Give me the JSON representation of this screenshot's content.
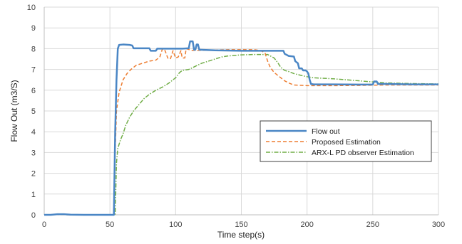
{
  "chart_data": {
    "type": "line",
    "title": "",
    "xlabel": "Time step(s)",
    "ylabel": "Flow Out (m3/S)",
    "xlim": [
      0,
      300
    ],
    "ylim": [
      0,
      10
    ],
    "xticks": [
      0,
      50,
      100,
      150,
      200,
      250,
      300
    ],
    "yticks": [
      0,
      1,
      2,
      3,
      4,
      5,
      6,
      7,
      8,
      9,
      10
    ],
    "grid": true,
    "legend_position": "right",
    "series": [
      {
        "name": "Flow out",
        "color": "#4a86c5",
        "style": "solid",
        "points": [
          [
            0,
            0
          ],
          [
            5,
            0
          ],
          [
            10,
            0.03
          ],
          [
            15,
            0.03
          ],
          [
            20,
            0.01
          ],
          [
            30,
            0
          ],
          [
            40,
            0
          ],
          [
            50,
            0
          ],
          [
            53,
            0
          ],
          [
            54,
            4
          ],
          [
            55,
            6.5
          ],
          [
            56,
            8.0
          ],
          [
            57,
            8.18
          ],
          [
            60,
            8.2
          ],
          [
            65,
            8.18
          ],
          [
            67,
            8.15
          ],
          [
            68,
            8.02
          ],
          [
            75,
            8.02
          ],
          [
            80,
            8.02
          ],
          [
            81,
            7.9
          ],
          [
            85,
            7.9
          ],
          [
            86,
            8.0
          ],
          [
            95,
            8.0
          ],
          [
            100,
            8.0
          ],
          [
            105,
            8.0
          ],
          [
            110,
            8.02
          ],
          [
            111,
            8.35
          ],
          [
            113,
            8.35
          ],
          [
            114,
            7.95
          ],
          [
            115,
            7.95
          ],
          [
            116,
            8.2
          ],
          [
            117,
            8.2
          ],
          [
            118,
            7.95
          ],
          [
            130,
            7.92
          ],
          [
            150,
            7.9
          ],
          [
            170,
            7.9
          ],
          [
            180,
            7.9
          ],
          [
            182,
            7.9
          ],
          [
            183,
            7.75
          ],
          [
            186,
            7.65
          ],
          [
            190,
            7.62
          ],
          [
            191,
            7.4
          ],
          [
            193,
            7.3
          ],
          [
            194,
            7.05
          ],
          [
            196,
            7.05
          ],
          [
            197,
            6.95
          ],
          [
            199,
            6.95
          ],
          [
            200,
            6.9
          ],
          [
            201,
            6.8
          ],
          [
            202,
            6.5
          ],
          [
            203,
            6.3
          ],
          [
            205,
            6.28
          ],
          [
            210,
            6.28
          ],
          [
            220,
            6.28
          ],
          [
            240,
            6.27
          ],
          [
            250,
            6.27
          ],
          [
            251,
            6.42
          ],
          [
            253,
            6.42
          ],
          [
            254,
            6.3
          ],
          [
            260,
            6.3
          ],
          [
            280,
            6.28
          ],
          [
            300,
            6.28
          ]
        ]
      },
      {
        "name": "Proposed Estimation",
        "color": "#ed7d31",
        "style": "dashed",
        "points": [
          [
            0,
            0
          ],
          [
            10,
            0.02
          ],
          [
            20,
            0
          ],
          [
            50,
            0
          ],
          [
            53,
            0
          ],
          [
            54,
            3.0
          ],
          [
            55,
            5.0
          ],
          [
            57,
            5.9
          ],
          [
            60,
            6.5
          ],
          [
            63,
            6.8
          ],
          [
            66,
            7.0
          ],
          [
            70,
            7.2
          ],
          [
            75,
            7.3
          ],
          [
            80,
            7.4
          ],
          [
            85,
            7.45
          ],
          [
            88,
            7.6
          ],
          [
            90,
            8.0
          ],
          [
            92,
            7.9
          ],
          [
            94,
            7.55
          ],
          [
            96,
            7.5
          ],
          [
            98,
            7.9
          ],
          [
            100,
            7.55
          ],
          [
            102,
            7.6
          ],
          [
            104,
            7.9
          ],
          [
            105,
            7.55
          ],
          [
            107,
            7.55
          ],
          [
            108,
            8.0
          ],
          [
            112,
            7.92
          ],
          [
            120,
            7.92
          ],
          [
            140,
            7.95
          ],
          [
            160,
            7.95
          ],
          [
            165,
            7.9
          ],
          [
            168,
            7.8
          ],
          [
            170,
            7.4
          ],
          [
            172,
            7.1
          ],
          [
            175,
            6.85
          ],
          [
            180,
            6.6
          ],
          [
            183,
            6.45
          ],
          [
            186,
            6.35
          ],
          [
            190,
            6.25
          ],
          [
            200,
            6.22
          ],
          [
            210,
            6.22
          ],
          [
            220,
            6.22
          ],
          [
            240,
            6.23
          ],
          [
            260,
            6.25
          ],
          [
            280,
            6.25
          ],
          [
            300,
            6.25
          ]
        ]
      },
      {
        "name": "ARX-L PD observer Estimation",
        "color": "#70ad47",
        "style": "dashdot",
        "points": [
          [
            0,
            0
          ],
          [
            10,
            0.02
          ],
          [
            20,
            0
          ],
          [
            50,
            0
          ],
          [
            54,
            0
          ],
          [
            55,
            2.5
          ],
          [
            56,
            3.2
          ],
          [
            58,
            3.6
          ],
          [
            60,
            3.9
          ],
          [
            62,
            4.3
          ],
          [
            65,
            4.7
          ],
          [
            68,
            5.0
          ],
          [
            72,
            5.3
          ],
          [
            76,
            5.6
          ],
          [
            80,
            5.8
          ],
          [
            85,
            6.0
          ],
          [
            90,
            6.15
          ],
          [
            95,
            6.35
          ],
          [
            100,
            6.6
          ],
          [
            103,
            6.85
          ],
          [
            105,
            6.95
          ],
          [
            110,
            7.0
          ],
          [
            115,
            7.15
          ],
          [
            120,
            7.3
          ],
          [
            125,
            7.4
          ],
          [
            130,
            7.5
          ],
          [
            135,
            7.6
          ],
          [
            140,
            7.65
          ],
          [
            150,
            7.7
          ],
          [
            160,
            7.72
          ],
          [
            170,
            7.72
          ],
          [
            175,
            7.55
          ],
          [
            178,
            7.3
          ],
          [
            180,
            7.1
          ],
          [
            183,
            6.95
          ],
          [
            186,
            6.9
          ],
          [
            190,
            6.8
          ],
          [
            195,
            6.72
          ],
          [
            200,
            6.65
          ],
          [
            205,
            6.6
          ],
          [
            210,
            6.58
          ],
          [
            220,
            6.55
          ],
          [
            230,
            6.5
          ],
          [
            240,
            6.45
          ],
          [
            250,
            6.4
          ],
          [
            260,
            6.35
          ],
          [
            280,
            6.32
          ],
          [
            300,
            6.3
          ]
        ]
      }
    ]
  }
}
